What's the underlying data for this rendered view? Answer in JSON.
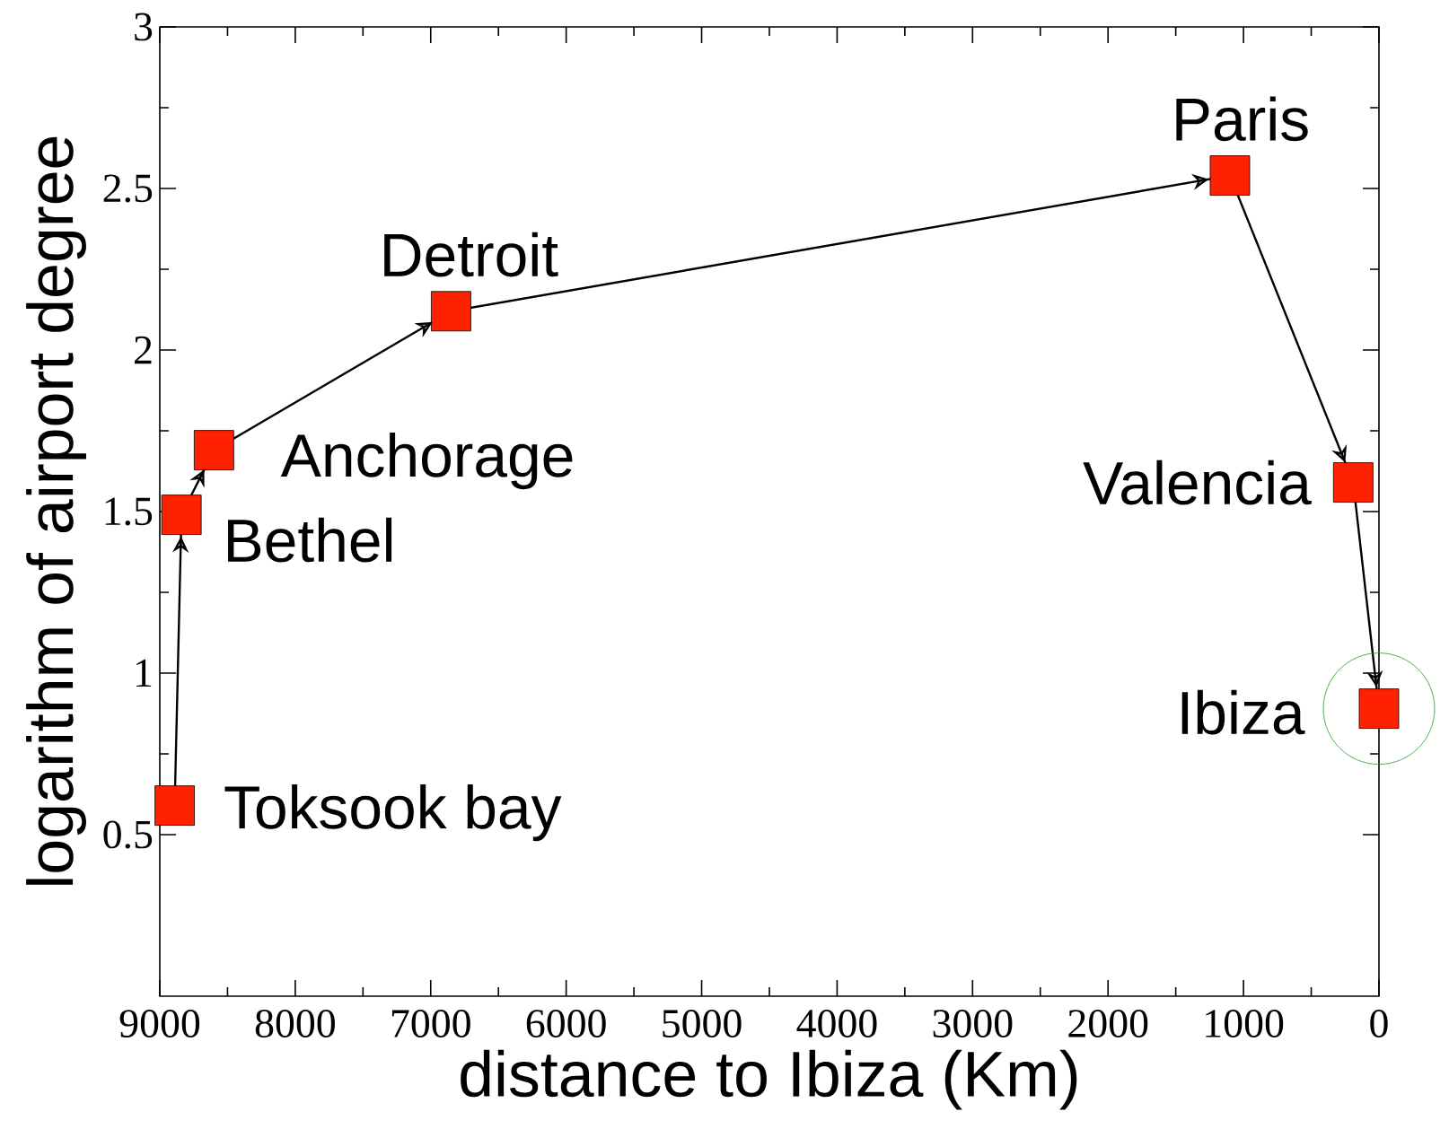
{
  "chart_data": {
    "type": "line",
    "xlabel": "distance to Ibiza (Km)",
    "ylabel": "logarithm of airport degree",
    "x": [
      8890,
      8840,
      8600,
      6850,
      1100,
      190,
      0
    ],
    "series": [
      {
        "type": "line",
        "color": "#ff2200",
        "marker": "square",
        "values": [
          0.59,
          1.49,
          1.69,
          2.12,
          2.54,
          1.59,
          0.89
        ]
      }
    ],
    "xlim": [
      9000,
      0
    ],
    "xticks": [
      9000,
      8000,
      7000,
      6000,
      5000,
      4000,
      3000,
      2000,
      1000,
      0
    ],
    "ylim": [
      0,
      3
    ],
    "yticks": [
      0.5,
      1,
      1.5,
      2,
      2.5,
      3
    ],
    "annotations": [
      {
        "text": "Toksook bay",
        "x": 8890,
        "y": 0.59
      },
      {
        "text": "Bethel",
        "x": 8840,
        "y": 1.49
      },
      {
        "text": "Anchorage",
        "x": 8600,
        "y": 1.69
      },
      {
        "text": "Detroit",
        "x": 6850,
        "y": 2.12
      },
      {
        "text": "Paris",
        "x": 1100,
        "y": 2.54
      },
      {
        "text": "Valencia",
        "x": 190,
        "y": 1.59
      },
      {
        "text": "Ibiza",
        "x": 0,
        "y": 0.89
      }
    ]
  }
}
